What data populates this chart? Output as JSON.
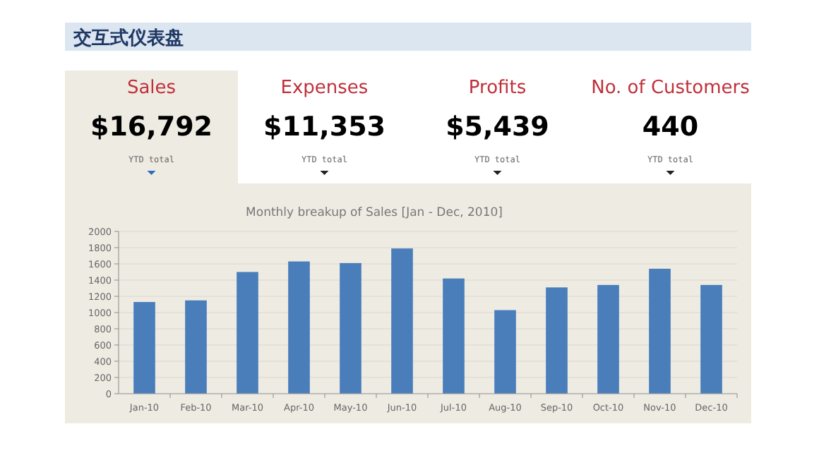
{
  "chart_data": [
    {
      "type": "other",
      "title": "交互式仪表盘",
      "annotations": [
        "Sales",
        "$16,792",
        "YTD total",
        "Expenses",
        "$11,353",
        "YTD total",
        "Profits",
        "$5,439",
        "YTD total",
        "No. of Customers",
        "440",
        "YTD total"
      ]
    },
    {
      "type": "bar",
      "title": "Monthly breakup of Sales [Jan - Dec, 2010]",
      "categories": [
        "Jan-10",
        "Feb-10",
        "Mar-10",
        "Apr-10",
        "May-10",
        "Jun-10",
        "Jul-10",
        "Aug-10",
        "Sep-10",
        "Oct-10",
        "Nov-10",
        "Dec-10"
      ],
      "values": [
        1130,
        1150,
        1500,
        1630,
        1610,
        1790,
        1420,
        1030,
        1310,
        1340,
        1540,
        1340
      ],
      "color": "#4a7ebb",
      "ylim": [
        0,
        2000
      ],
      "yticks": [
        0,
        200,
        400,
        600,
        800,
        1000,
        1200,
        1400,
        1600,
        1800,
        2000
      ],
      "grid": "y"
    }
  ]
}
